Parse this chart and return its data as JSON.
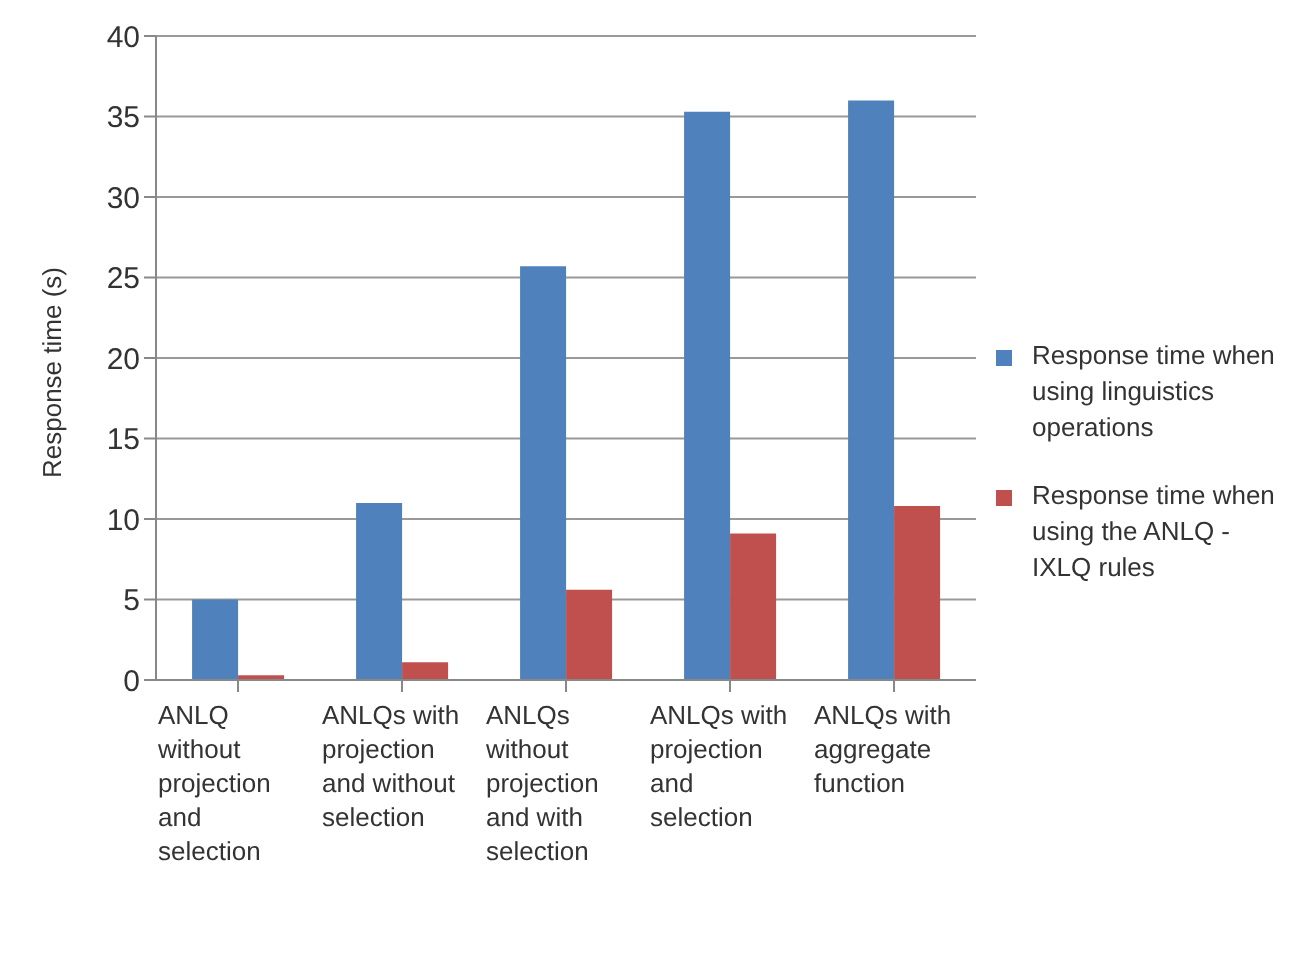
{
  "chart_data": {
    "type": "bar",
    "ylabel": "Response time (s)",
    "categories": [
      "ANLQ without projection and selection",
      "ANLQs with projection and without selection",
      "ANLQs without projection and with selection",
      "ANLQs with projection and selection",
      "ANLQs with aggregate function"
    ],
    "series": [
      {
        "name": "Response time when using linguistics operations",
        "color": "#4f81bd",
        "values": [
          5,
          11,
          25.7,
          35.3,
          36
        ]
      },
      {
        "name": "Response time when using the ANLQ -IXLQ rules",
        "color": "#c0504d",
        "values": [
          0.3,
          1.1,
          5.6,
          9.1,
          10.8
        ]
      }
    ],
    "ylim": [
      0,
      40
    ],
    "yticks": [
      0,
      5,
      10,
      15,
      20,
      25,
      30,
      35,
      40
    ],
    "grid": "y",
    "legend": "right"
  }
}
